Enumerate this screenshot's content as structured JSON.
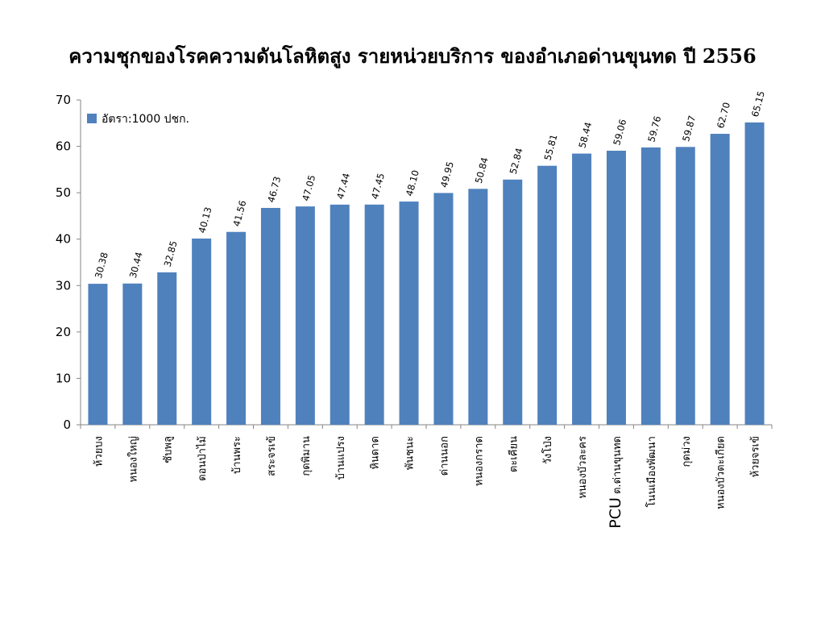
{
  "chart_data": {
    "type": "bar",
    "title": "ความชุกของโรคความดันโลหิตสูง รายหน่วยบริการ ของอำเภอด่านขุนทด ปี 2556",
    "xlabel": "",
    "ylabel": "",
    "ylim": [
      0,
      70
    ],
    "yticks": [
      0,
      10,
      20,
      30,
      40,
      50,
      60,
      70
    ],
    "grid": false,
    "legend_position": "top-left",
    "series_color": "#4F81BD",
    "categories": [
      "ห้วยบง",
      "หนองใหญ่",
      "ซับพลู",
      "ดอนป่าไม้",
      "บ้านพระ",
      "สระจรเข้",
      "กุดพิมาน",
      "บ้านแปรง",
      "หินดาด",
      "พันชนะ",
      "ด่านนอก",
      "หนองกราด",
      "ตะเคียน",
      "วังโป่ง",
      "หนองบัวละคร",
      "PCU ต.ด่านขุนทด",
      "โนนเมืองพัฒนา",
      "กุดม่วง",
      "หนองบัวตะเกียด",
      "ห้วยจรเข้"
    ],
    "series": [
      {
        "name": "อัตรา:1000 ปชก.",
        "values": [
          30.38,
          30.44,
          32.85,
          40.13,
          41.56,
          46.73,
          47.05,
          47.44,
          47.45,
          48.1,
          49.95,
          50.84,
          52.84,
          55.81,
          58.44,
          59.06,
          59.76,
          59.87,
          62.7,
          65.15
        ],
        "labels": [
          "30.38",
          "30.44",
          "32.85",
          "40.13",
          "41.56",
          "46.73",
          "47.05",
          "47.44",
          "47.45",
          "48.10",
          "49.95",
          "50.84",
          "52.84",
          "55.81",
          "58.44",
          "59.06",
          "59.76",
          "59.87",
          "62.70",
          "65.15"
        ]
      }
    ]
  }
}
